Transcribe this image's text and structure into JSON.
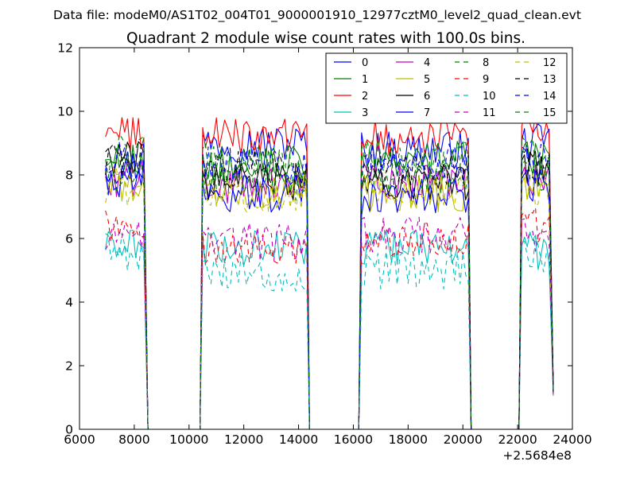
{
  "header": {
    "file_line": "Data file: modeM0/AS1T02_004T01_9000001910_12977cztM0_level2_quad_clean.evt"
  },
  "chart_data": {
    "type": "line",
    "title": "Quadrant 2 module wise count rates with 100.0s bins.",
    "xlabel": "",
    "ylabel": "",
    "x_offset_label": "+2.5684e8",
    "xlim": [
      6000,
      24000
    ],
    "ylim": [
      0,
      12
    ],
    "xticks": [
      "6000",
      "8000",
      "10000",
      "12000",
      "14000",
      "16000",
      "18000",
      "20000",
      "22000",
      "24000"
    ],
    "yticks": [
      "0",
      "2",
      "4",
      "6",
      "8",
      "10",
      "12"
    ],
    "grid": false,
    "legend_position": "top-right",
    "legend_columns": 4,
    "observing_windows": [
      [
        6950,
        8500
      ],
      [
        10500,
        14400
      ],
      [
        16300,
        20300
      ],
      [
        22150,
        23300
      ]
    ],
    "gap_value": 0,
    "edge_values": {
      "after_window_4": 1.3
    },
    "series": [
      {
        "name": "0",
        "color": "#0000ff",
        "dash": "solid",
        "levels": [
          8.3,
          9.0,
          8.8,
          9.0
        ]
      },
      {
        "name": "1",
        "color": "#008000",
        "dash": "solid",
        "levels": [
          8.5,
          8.3,
          8.5,
          8.5
        ]
      },
      {
        "name": "2",
        "color": "#ff0000",
        "dash": "solid",
        "levels": [
          9.3,
          9.2,
          9.2,
          9.4
        ]
      },
      {
        "name": "3",
        "color": "#00bfbf",
        "dash": "solid",
        "levels": [
          5.7,
          5.7,
          5.7,
          5.6
        ]
      },
      {
        "name": "4",
        "color": "#bf00bf",
        "dash": "solid",
        "levels": [
          7.9,
          7.6,
          7.8,
          7.8
        ]
      },
      {
        "name": "5",
        "color": "#bfbf00",
        "dash": "solid",
        "levels": [
          7.7,
          7.5,
          7.4,
          7.5
        ]
      },
      {
        "name": "6",
        "color": "#000000",
        "dash": "solid",
        "levels": [
          8.5,
          7.8,
          7.8,
          8.2
        ]
      },
      {
        "name": "7",
        "color": "#0000ff",
        "dash": "solid",
        "levels": [
          7.9,
          7.4,
          7.3,
          7.6
        ]
      },
      {
        "name": "8",
        "color": "#008000",
        "dash": "dashed",
        "levels": [
          8.1,
          7.8,
          7.9,
          8.0
        ]
      },
      {
        "name": "9",
        "color": "#ff0000",
        "dash": "dashed",
        "levels": [
          6.4,
          5.8,
          5.9,
          6.4
        ]
      },
      {
        "name": "10",
        "color": "#00bfbf",
        "dash": "dashed",
        "levels": [
          5.6,
          4.9,
          5.0,
          5.5
        ]
      },
      {
        "name": "11",
        "color": "#bf00bf",
        "dash": "dashed",
        "levels": [
          6.2,
          5.9,
          6.1,
          6.2
        ]
      },
      {
        "name": "12",
        "color": "#bfbf00",
        "dash": "dashed",
        "levels": [
          7.6,
          7.4,
          7.6,
          7.6
        ]
      },
      {
        "name": "13",
        "color": "#000000",
        "dash": "dashed",
        "levels": [
          8.4,
          8.2,
          8.1,
          8.3
        ]
      },
      {
        "name": "14",
        "color": "#0000ff",
        "dash": "dashed",
        "levels": [
          8.6,
          8.3,
          8.4,
          8.4
        ]
      },
      {
        "name": "15",
        "color": "#008000",
        "dash": "dashed",
        "levels": [
          8.7,
          8.4,
          8.6,
          8.7
        ]
      }
    ]
  }
}
